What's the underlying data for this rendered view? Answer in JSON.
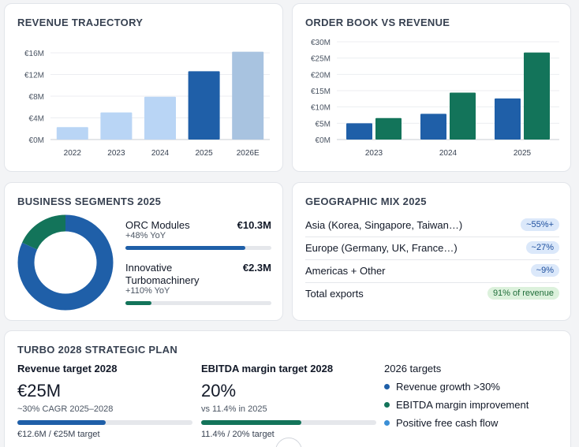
{
  "revenue": {
    "title": "REVENUE TRAJECTORY",
    "chart_data": {
      "type": "bar",
      "title": "REVENUE TRAJECTORY",
      "categories": [
        "2022",
        "2023",
        "2024",
        "2025",
        "2026E"
      ],
      "values": [
        2.3,
        5.0,
        7.9,
        12.6,
        16.2
      ],
      "colors": [
        "#b9d5f5",
        "#b9d5f5",
        "#b9d5f5",
        "#1f5fa8",
        "#a8c3e0"
      ],
      "yticks": [
        "€0M",
        "€4M",
        "€8M",
        "€12M",
        "€16M"
      ],
      "ylim": [
        0,
        16
      ],
      "grid": true
    }
  },
  "orderbook": {
    "title": "ORDER BOOK VS REVENUE",
    "chart_data": {
      "type": "bar",
      "title": "ORDER BOOK VS REVENUE",
      "categories": [
        "2023",
        "2024",
        "2025"
      ],
      "series": [
        {
          "values": [
            5.0,
            7.9,
            12.6
          ],
          "color": "#1f5fa8"
        },
        {
          "values": [
            6.6,
            14.4,
            26.7
          ],
          "color": "#13745a"
        }
      ],
      "yticks": [
        "€0M",
        "€5M",
        "€10M",
        "€15M",
        "€20M",
        "€25M",
        "€30M"
      ],
      "ylim": [
        0,
        30
      ],
      "grid": true
    }
  },
  "segments": {
    "title": "BUSINESS SEGMENTS 2025",
    "chart_data": {
      "type": "pie",
      "slices": [
        {
          "name": "ORC Modules",
          "value": 10.3,
          "color": "#1f5fa8"
        },
        {
          "name": "Innovative Turbomachinery",
          "value": 2.3,
          "color": "#13745a"
        }
      ]
    },
    "items": [
      {
        "name": "ORC Modules",
        "value": "€10.3M",
        "growth": "+48% YoY",
        "share": 0.82,
        "color": "#1f5fa8"
      },
      {
        "name": "Innovative Turbomachinery",
        "value": "€2.3M",
        "growth": "+110% YoY",
        "share": 0.18,
        "color": "#13745a"
      }
    ]
  },
  "geo": {
    "title": "GEOGRAPHIC MIX 2025",
    "rows": [
      {
        "label": "Asia (Korea, Singapore, Taiwan…)",
        "badge": "~55%+"
      },
      {
        "label": "Europe (Germany, UK, France…)",
        "badge": "~27%"
      },
      {
        "label": "Americas + Other",
        "badge": "~9%"
      }
    ],
    "total": {
      "label": "Total exports",
      "badge": "91% of revenue"
    }
  },
  "plan": {
    "title": "TURBO 2028 STRATEGIC PLAN",
    "revenue": {
      "heading": "Revenue target 2028",
      "big": "€25M",
      "sub": "~30% CAGR 2025–2028",
      "progress": 0.504,
      "foot": "€12.6M / €25M target",
      "color": "#1f5fa8"
    },
    "ebitda": {
      "heading": "EBITDA margin target 2028",
      "big": "20%",
      "sub": "vs 11.4% in 2025",
      "progress": 0.57,
      "foot": "11.4% / 20% target",
      "color": "#13745a"
    },
    "targets": {
      "heading": "2026 targets",
      "items": [
        {
          "text": "Revenue growth >30%",
          "color": "#1f5fa8"
        },
        {
          "text": "EBITDA margin improvement",
          "color": "#13745a"
        },
        {
          "text": "Positive free cash flow",
          "color": "#3b8fd6"
        }
      ]
    }
  }
}
